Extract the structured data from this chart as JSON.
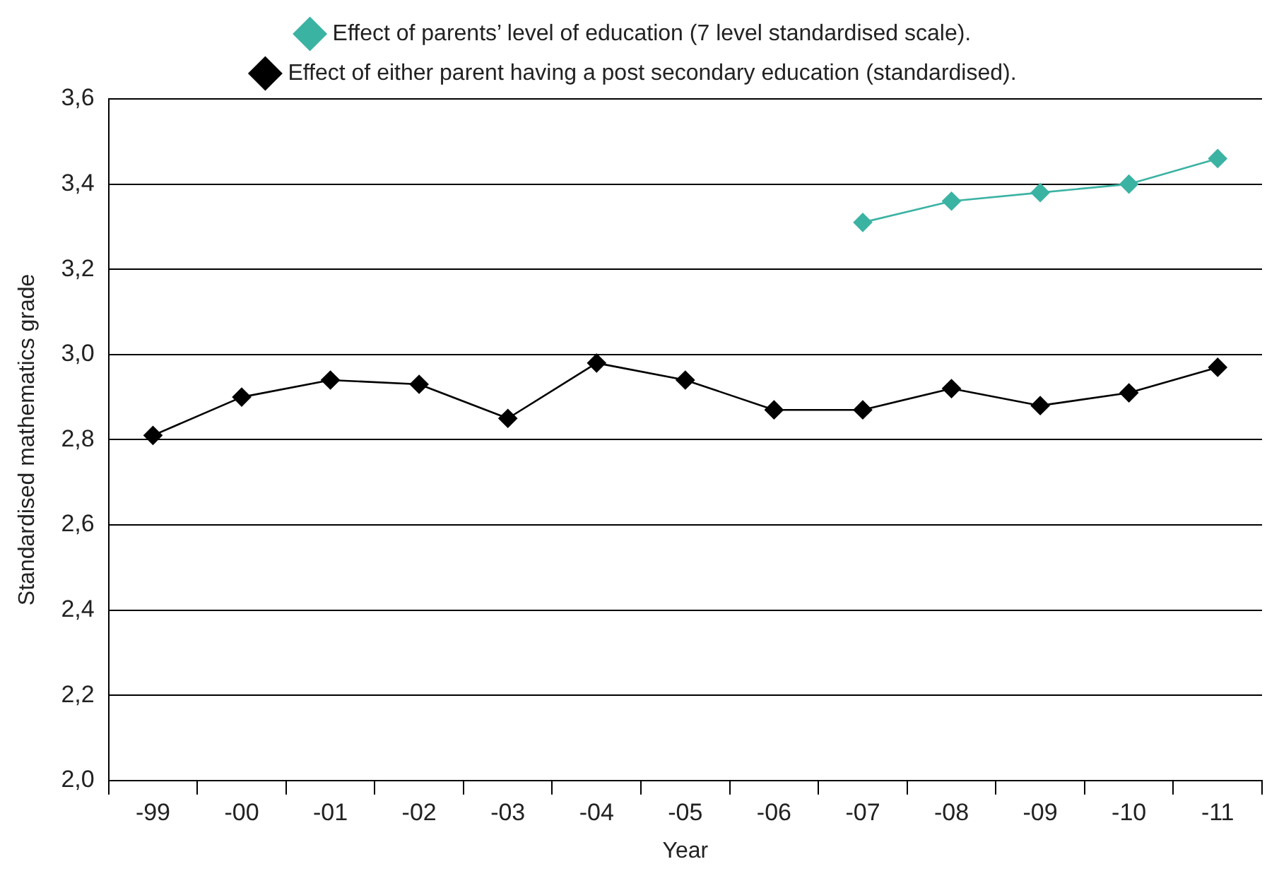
{
  "chart_data": {
    "type": "line",
    "xlabel": "Year",
    "ylabel": "Standardised mathematics grade",
    "categories": [
      "-99",
      "-00",
      "-01",
      "-02",
      "-03",
      "-04",
      "-05",
      "-06",
      "-07",
      "-08",
      "-09",
      "-10",
      "-11"
    ],
    "series": [
      {
        "name": "Effect of parents’ level of education (7 level standardised scale).",
        "color": "#3bb3a3",
        "values": [
          null,
          null,
          null,
          null,
          null,
          null,
          null,
          null,
          3.31,
          3.36,
          3.38,
          3.4,
          3.46
        ]
      },
      {
        "name": "Effect of either parent having a post secondary education (standardised).",
        "color": "#000000",
        "values": [
          2.81,
          2.9,
          2.94,
          2.93,
          2.85,
          2.98,
          2.94,
          2.87,
          2.87,
          2.92,
          2.88,
          2.91,
          2.97
        ]
      }
    ],
    "ylim": [
      2.0,
      3.6
    ],
    "yticks": [
      {
        "value": 2.0,
        "label": "2,0"
      },
      {
        "value": 2.2,
        "label": "2,2"
      },
      {
        "value": 2.4,
        "label": "2,4"
      },
      {
        "value": 2.6,
        "label": "2,6"
      },
      {
        "value": 2.8,
        "label": "2,8"
      },
      {
        "value": 3.0,
        "label": "3,0"
      },
      {
        "value": 3.2,
        "label": "3,2"
      },
      {
        "value": 3.4,
        "label": "3,4"
      },
      {
        "value": 3.6,
        "label": "3,6"
      }
    ],
    "grid": "y",
    "legend": "top",
    "marker": "diamond",
    "line_style": "solid"
  }
}
